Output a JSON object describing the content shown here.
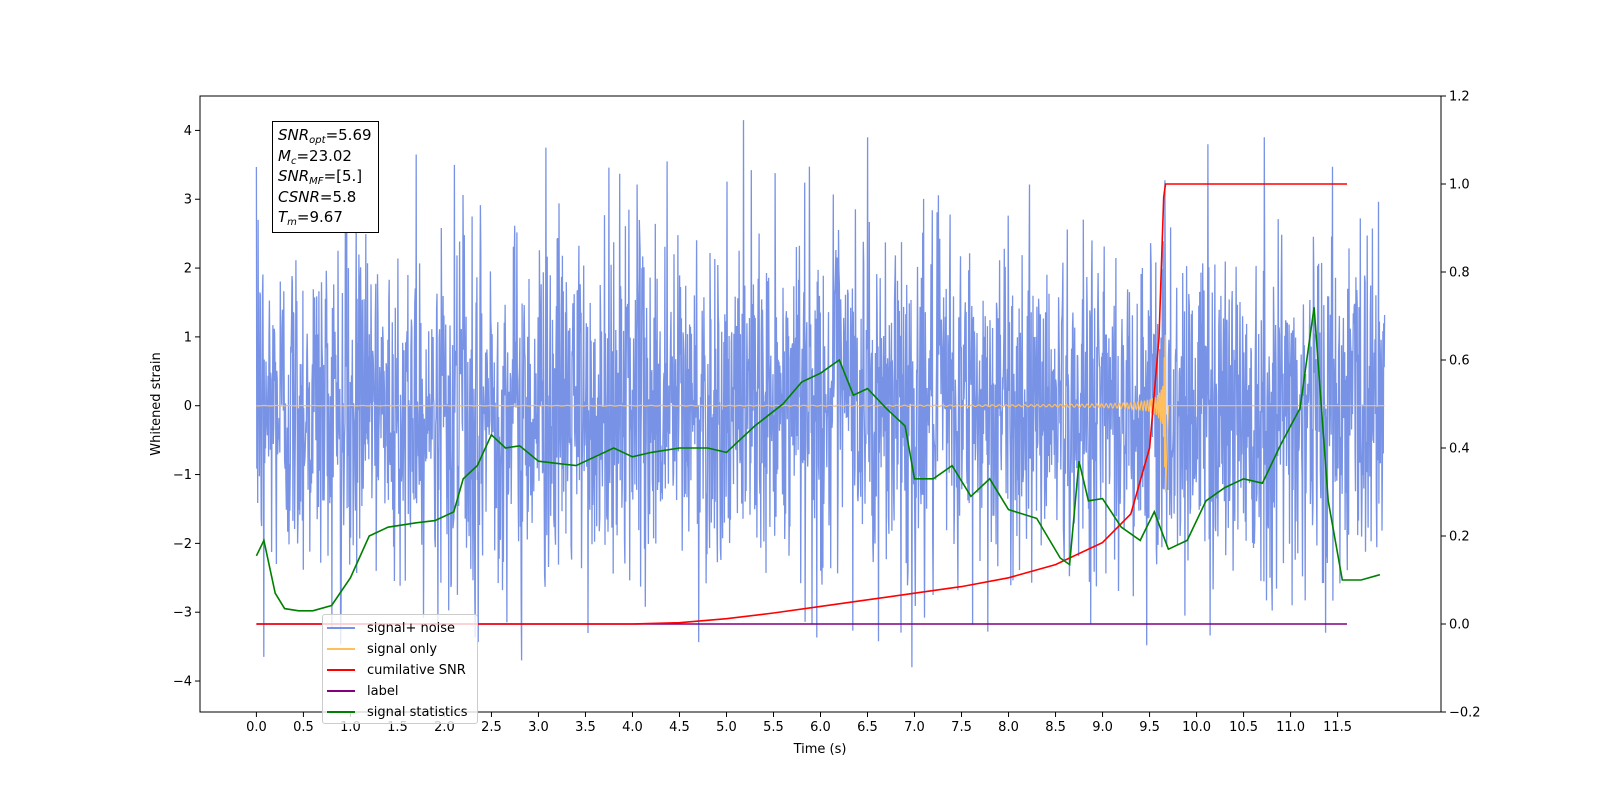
{
  "chart_data": {
    "type": "line",
    "xlabel": "Time (s)",
    "ylabel": "Whitened strain",
    "xlim": [
      -0.6,
      12.6
    ],
    "ylim": [
      -4.45,
      4.5
    ],
    "y2lim": [
      -0.2,
      1.2
    ],
    "x_ticks": [
      0.0,
      0.5,
      1.0,
      1.5,
      2.0,
      2.5,
      3.0,
      3.5,
      4.0,
      4.5,
      5.0,
      5.5,
      6.0,
      6.5,
      7.0,
      7.5,
      8.0,
      8.5,
      9.0,
      9.5,
      10.0,
      10.5,
      11.0,
      11.5
    ],
    "x_tick_labels": [
      "0.0",
      "0.5",
      "1.0",
      "1.5",
      "2.0",
      "2.5",
      "3.0",
      "3.5",
      "4.0",
      "4.5",
      "5.0",
      "5.5",
      "6.0",
      "6.5",
      "7.0",
      "7.5",
      "8.0",
      "8.5",
      "9.0",
      "9.5",
      "10.0",
      "10.5",
      "11.0",
      "11.5"
    ],
    "y_ticks": [
      -4,
      -3,
      -2,
      -1,
      0,
      1,
      2,
      3,
      4
    ],
    "y_tick_labels": [
      "−4",
      "−3",
      "−2",
      "−1",
      "0",
      "1",
      "2",
      "3",
      "4"
    ],
    "y2_ticks": [
      -0.2,
      0.0,
      0.2,
      0.4,
      0.6,
      0.8,
      1.0,
      1.2
    ],
    "y2_tick_labels": [
      "−0.2",
      "0.0",
      "0.2",
      "0.4",
      "0.6",
      "0.8",
      "1.0",
      "1.2"
    ],
    "grid": false,
    "legend_position": "lower-left",
    "series": [
      {
        "name": "signal+ noise",
        "axis": "left",
        "color": "#7893e6",
        "description": "dense gaussian noise band roughly between -2 and 2, peaks near ±4",
        "x_range": [
          0.0,
          12.0
        ],
        "peaks": [
          [
            0.02,
            2.7
          ],
          [
            0.08,
            -3.65
          ],
          [
            1.7,
            3.65
          ],
          [
            2.82,
            -3.7
          ],
          [
            3.08,
            3.75
          ],
          [
            4.37,
            3.55
          ],
          [
            5.18,
            4.15
          ],
          [
            6.5,
            3.9
          ],
          [
            6.97,
            -3.8
          ],
          [
            10.12,
            3.8
          ],
          [
            10.72,
            3.9
          ],
          [
            11.37,
            -3.3
          ]
        ]
      },
      {
        "name": "signal only",
        "axis": "left",
        "color": "#ffbf5f",
        "description": "chirp waveform, flat at 0 then growing until merger near 9.67 s",
        "x_range": [
          0.0,
          12.0
        ]
      },
      {
        "name": "cumilative SNR",
        "axis": "right",
        "color": "#ff0000",
        "x": [
          0.0,
          4.0,
          4.5,
          5.0,
          5.5,
          6.0,
          6.5,
          7.0,
          7.5,
          8.0,
          8.5,
          9.0,
          9.3,
          9.5,
          9.6,
          9.65,
          9.67,
          11.6
        ],
        "y": [
          0.0,
          0.0,
          0.003,
          0.012,
          0.025,
          0.04,
          0.055,
          0.07,
          0.085,
          0.105,
          0.135,
          0.185,
          0.25,
          0.4,
          0.65,
          0.97,
          1.0,
          1.0
        ]
      },
      {
        "name": "label",
        "axis": "right",
        "color": "#800080",
        "x": [
          0.0,
          11.6
        ],
        "y": [
          0.0,
          0.0
        ]
      },
      {
        "name": "signal statistics",
        "axis": "right",
        "color": "#008000",
        "x": [
          0.0,
          0.08,
          0.2,
          0.3,
          0.45,
          0.6,
          0.8,
          1.0,
          1.2,
          1.4,
          1.7,
          1.9,
          2.1,
          2.2,
          2.35,
          2.5,
          2.65,
          2.8,
          3.0,
          3.2,
          3.4,
          3.6,
          3.8,
          4.0,
          4.2,
          4.5,
          4.8,
          5.0,
          5.3,
          5.6,
          5.8,
          6.0,
          6.2,
          6.35,
          6.5,
          6.7,
          6.9,
          7.0,
          7.2,
          7.4,
          7.6,
          7.8,
          8.0,
          8.3,
          8.55,
          8.65,
          8.75,
          8.85,
          9.0,
          9.2,
          9.4,
          9.55,
          9.7,
          9.9,
          10.1,
          10.3,
          10.5,
          10.7,
          10.9,
          11.1,
          11.25,
          11.4,
          11.55,
          11.75,
          11.95
        ],
        "y": [
          0.155,
          0.19,
          0.07,
          0.035,
          0.03,
          0.03,
          0.042,
          0.105,
          0.2,
          0.22,
          0.23,
          0.235,
          0.255,
          0.33,
          0.36,
          0.43,
          0.4,
          0.405,
          0.37,
          0.365,
          0.36,
          0.38,
          0.4,
          0.38,
          0.39,
          0.4,
          0.4,
          0.39,
          0.45,
          0.5,
          0.55,
          0.57,
          0.6,
          0.52,
          0.535,
          0.49,
          0.45,
          0.33,
          0.33,
          0.36,
          0.29,
          0.33,
          0.26,
          0.24,
          0.15,
          0.135,
          0.37,
          0.28,
          0.285,
          0.22,
          0.19,
          0.255,
          0.17,
          0.19,
          0.28,
          0.31,
          0.33,
          0.32,
          0.41,
          0.49,
          0.72,
          0.28,
          0.1,
          0.1,
          0.112
        ]
      }
    ],
    "annotation": {
      "snr_opt_value": "=5.69",
      "mc_value": "=23.02",
      "snr_mf_value": "=[5.]",
      "csnr_value": "=5.8",
      "tm_value": "=9.67"
    }
  }
}
